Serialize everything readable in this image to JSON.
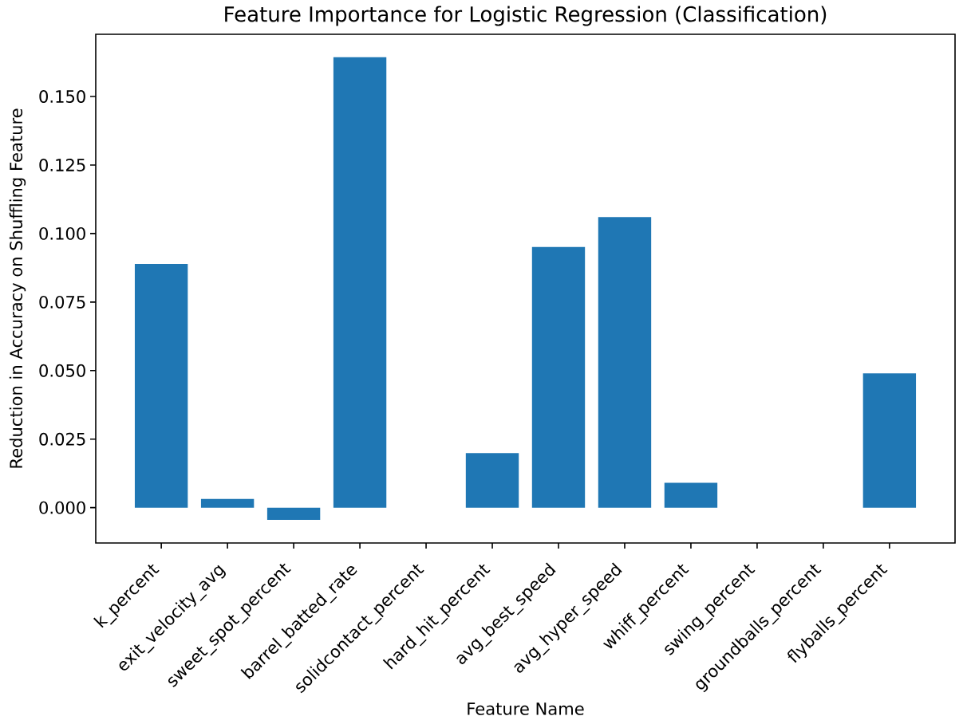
{
  "chart_data": {
    "type": "bar",
    "title": "Feature Importance for Logistic Regression (Classification)",
    "xlabel": "Feature Name",
    "ylabel": "Reduction in Accuracy on Shuffling Feature",
    "categories": [
      "k_percent",
      "exit_velocity_avg",
      "sweet_spot_percent",
      "barrel_batted_rate",
      "solidcontact_percent",
      "hard_hit_percent",
      "avg_best_speed",
      "avg_hyper_speed",
      "whiff_percent",
      "swing_percent",
      "groundballs_percent",
      "flyballs_percent"
    ],
    "values": [
      0.0889,
      0.0032,
      -0.0045,
      0.1643,
      0,
      0.0199,
      0.0951,
      0.106,
      0.0091,
      0,
      0,
      0.049
    ],
    "color": "#1f77b4",
    "ylim": [
      -0.0129,
      0.1727
    ],
    "yticks": [
      {
        "value": 0,
        "label": "0.000"
      },
      {
        "value": 0.025,
        "label": "0.025"
      },
      {
        "value": 0.05,
        "label": "0.050"
      },
      {
        "value": 0.075,
        "label": "0.075"
      },
      {
        "value": 0.1,
        "label": "0.100"
      },
      {
        "value": 0.125,
        "label": "0.125"
      },
      {
        "value": 0.15,
        "label": "0.150"
      }
    ]
  }
}
